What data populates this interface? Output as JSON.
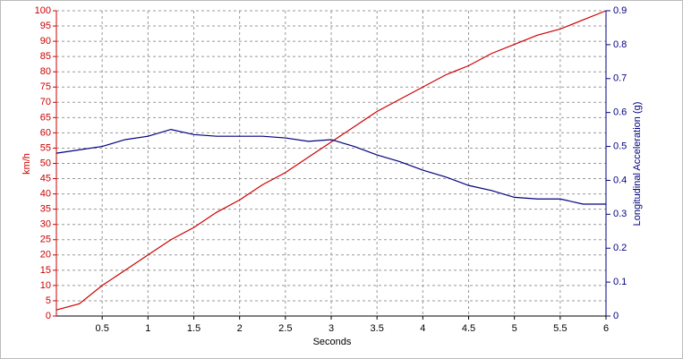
{
  "chart_data": {
    "type": "line",
    "xlabel": "Seconds",
    "ylabel": "km/h",
    "y2label": "Longitudinal Acceleration (g)",
    "x": [
      0,
      0.25,
      0.5,
      0.75,
      1,
      1.25,
      1.5,
      1.75,
      2,
      2.25,
      2.5,
      2.75,
      3,
      3.25,
      3.5,
      3.75,
      4,
      4.25,
      4.5,
      4.75,
      5,
      5.25,
      5.5,
      5.75,
      6
    ],
    "series": [
      {
        "color": "#cc0000",
        "values": [
          2,
          4,
          10,
          15,
          20,
          25,
          29,
          34,
          38,
          43,
          47,
          52,
          57,
          62,
          67,
          71,
          75,
          79,
          82,
          86,
          89,
          92,
          94,
          97,
          100
        ]
      },
      {
        "color": "#000080",
        "axis": "y2",
        "values": [
          0.48,
          0.49,
          0.5,
          0.52,
          0.53,
          0.55,
          0.535,
          0.53,
          0.53,
          0.53,
          0.525,
          0.515,
          0.52,
          0.5,
          0.475,
          0.455,
          0.43,
          0.41,
          0.385,
          0.37,
          0.35,
          0.345,
          0.345,
          0.33,
          0.33
        ]
      }
    ],
    "xlim": [
      0,
      6
    ],
    "xticks": [
      0.5,
      1,
      1.5,
      2,
      2.5,
      3,
      3.5,
      4,
      4.5,
      5,
      5.5,
      6
    ],
    "ylim": [
      0,
      100
    ],
    "yticks": [
      0,
      5,
      10,
      15,
      20,
      25,
      30,
      35,
      40,
      45,
      50,
      55,
      60,
      65,
      70,
      75,
      80,
      85,
      90,
      95,
      100
    ],
    "y2lim": [
      0,
      0.9
    ],
    "y2ticks": [
      0,
      0.1,
      0.2,
      0.3,
      0.4,
      0.5,
      0.6,
      0.7,
      0.8,
      0.9
    ],
    "grid": true
  }
}
